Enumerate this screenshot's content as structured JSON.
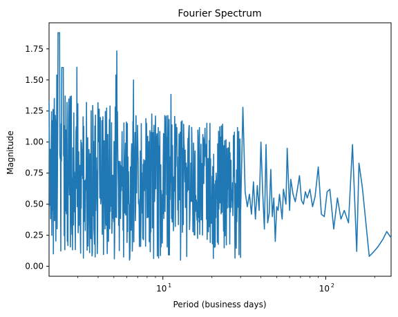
{
  "chart_data": {
    "type": "line",
    "title": "Fourier Spectrum",
    "xlabel": "Period (business days)",
    "ylabel": "Magnitude",
    "xscale": "log",
    "xlim": [
      2,
      252
    ],
    "ylim": [
      -0.08,
      1.96
    ],
    "grid": false,
    "legend": "none",
    "xticks": [
      {
        "value": 10,
        "label": "10",
        "sup": "1"
      },
      {
        "value": 100,
        "label": "10",
        "sup": "2"
      }
    ],
    "yticks": [
      {
        "value": 0.0,
        "label": "0.00"
      },
      {
        "value": 0.25,
        "label": "0.25"
      },
      {
        "value": 0.5,
        "label": "0.50"
      },
      {
        "value": 0.75,
        "label": "0.75"
      },
      {
        "value": 1.0,
        "label": "1.00"
      },
      {
        "value": 1.25,
        "label": "1.25"
      },
      {
        "value": 1.5,
        "label": "1.50"
      },
      {
        "value": 1.75,
        "label": "1.75"
      }
    ],
    "series": [
      {
        "color": "#1f77b4",
        "x": [
          252,
          237,
          225,
          210,
          198,
          185,
          168,
          160,
          155,
          146,
          138,
          130,
          124,
          118,
          112,
          106,
          102,
          98,
          94,
          90,
          86,
          83,
          80,
          77,
          75,
          73,
          71,
          69,
          67,
          65,
          63,
          61,
          60,
          58,
          57,
          55,
          54,
          52,
          51,
          50,
          49,
          48,
          47,
          46,
          45,
          44,
          43,
          42,
          41,
          40,
          39,
          38,
          37,
          36,
          35,
          34,
          33,
          32,
          31,
          30
        ],
        "y": [
          0.23,
          0.28,
          0.22,
          0.16,
          0.12,
          0.08,
          0.63,
          0.83,
          0.12,
          0.98,
          0.35,
          0.45,
          0.38,
          0.55,
          0.3,
          0.62,
          0.6,
          0.4,
          0.42,
          0.8,
          0.56,
          0.48,
          0.62,
          0.55,
          0.6,
          0.5,
          0.53,
          0.73,
          0.62,
          0.52,
          0.58,
          0.7,
          0.45,
          0.95,
          0.5,
          0.62,
          0.38,
          0.58,
          0.45,
          0.48,
          0.2,
          0.55,
          0.4,
          0.78,
          0.43,
          0.35,
          0.98,
          0.3,
          0.6,
          1.0,
          0.45,
          0.65,
          0.38,
          0.68,
          0.42,
          0.58,
          0.48,
          0.6,
          1.28,
          0.42
        ]
      }
    ]
  }
}
